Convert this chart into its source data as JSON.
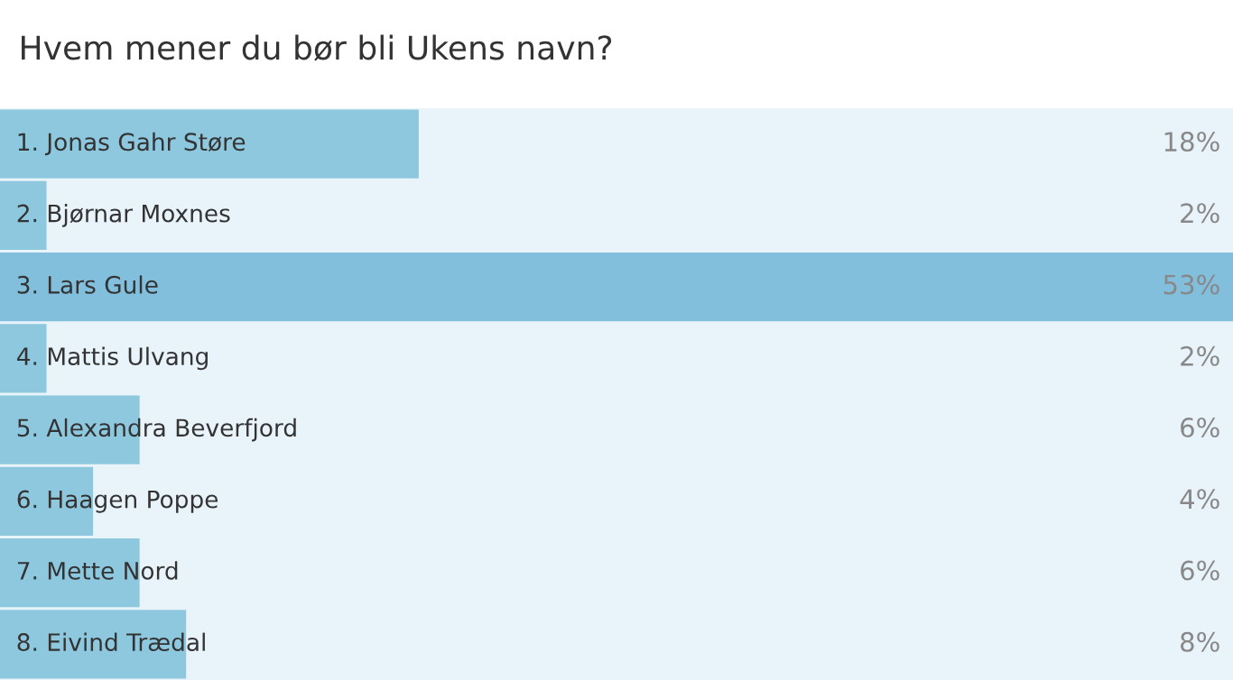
{
  "chart_data": {
    "type": "bar",
    "orientation": "horizontal",
    "title": "Hvem mener du bør bli Ukens navn?",
    "categories": [
      "1. Jonas Gahr Støre",
      "2. Bjørnar Moxnes",
      "3. Lars Gule",
      "4. Mattis Ulvang",
      "5. Alexandra Beverfjord",
      "6. Haagen Poppe",
      "7. Mette Nord",
      "8. Eivind Trædal"
    ],
    "values": [
      18,
      2,
      53,
      2,
      6,
      4,
      6,
      8
    ],
    "value_labels": [
      "18%",
      "2%",
      "53%",
      "2%",
      "6%",
      "4%",
      "6%",
      "8%"
    ],
    "colors": [
      "#8ec8df",
      "#8ec8df",
      "#82bfdc",
      "#8ec8df",
      "#8ec8df",
      "#8ec8df",
      "#8ec8df",
      "#8ec8df"
    ],
    "xlim": [
      0,
      53
    ]
  }
}
